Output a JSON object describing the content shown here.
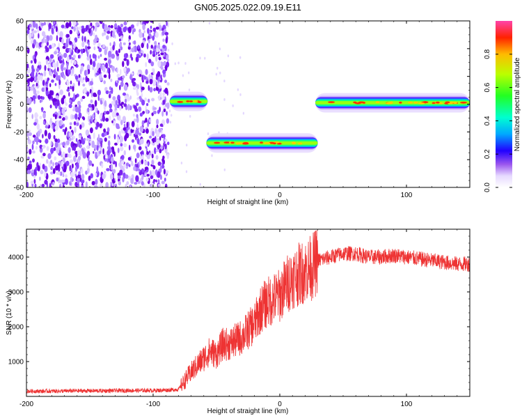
{
  "figure": {
    "title": "GN05.2025.022.09.19.E11"
  },
  "chart_data": [
    {
      "type": "heatmap",
      "title": "",
      "xlabel": "Height of straight line (km)",
      "ylabel": "Frequency (Hz)",
      "xlim": [
        -200,
        150
      ],
      "ylim": [
        -60,
        60
      ],
      "xticks": [
        -200,
        -100,
        0,
        100
      ],
      "yticks": [
        -60,
        -40,
        -20,
        0,
        20,
        40,
        60
      ],
      "colorbar": {
        "label": "Normalized spectral amplitude",
        "range": [
          0,
          1
        ],
        "ticks": [
          0.0,
          0.2,
          0.4,
          0.6,
          0.8
        ]
      },
      "ridges": [
        {
          "x_start": -87,
          "x_end": -57,
          "frequency": 2
        },
        {
          "x_start": -58,
          "x_end": 30,
          "frequency": -28
        },
        {
          "x_start": 28,
          "x_end": 150,
          "frequency": 1
        }
      ],
      "noise_region": {
        "x_start": -200,
        "x_end": -88
      }
    },
    {
      "type": "line",
      "title": "",
      "xlabel": "Height of straight line (km)",
      "ylabel": "SNR (10 * v/v)",
      "xlim": [
        -200,
        150
      ],
      "ylim": [
        0,
        4800
      ],
      "xticks": [
        -200,
        -100,
        0,
        100
      ],
      "yticks": [
        1000,
        2000,
        3000,
        4000
      ],
      "series": [
        {
          "color": "#ee3333",
          "x": [
            -200,
            -180,
            -160,
            -140,
            -120,
            -100,
            -90,
            -80,
            -76,
            -70,
            -65,
            -60,
            -55,
            -50,
            -45,
            -40,
            -35,
            -30,
            -25,
            -20,
            -15,
            -10,
            -5,
            0,
            5,
            10,
            15,
            20,
            25,
            30,
            40,
            50,
            60,
            70,
            80,
            90,
            100,
            110,
            120,
            130,
            140,
            150
          ],
          "y": [
            150,
            150,
            160,
            160,
            170,
            170,
            180,
            200,
            400,
            700,
            900,
            1100,
            1300,
            1200,
            1500,
            1500,
            1600,
            1700,
            1900,
            2100,
            2500,
            2700,
            2800,
            2900,
            3200,
            3400,
            3500,
            3600,
            3700,
            3900,
            4000,
            4100,
            4100,
            4000,
            4000,
            4050,
            4000,
            3950,
            3900,
            3850,
            3800,
            3800
          ]
        }
      ]
    }
  ]
}
